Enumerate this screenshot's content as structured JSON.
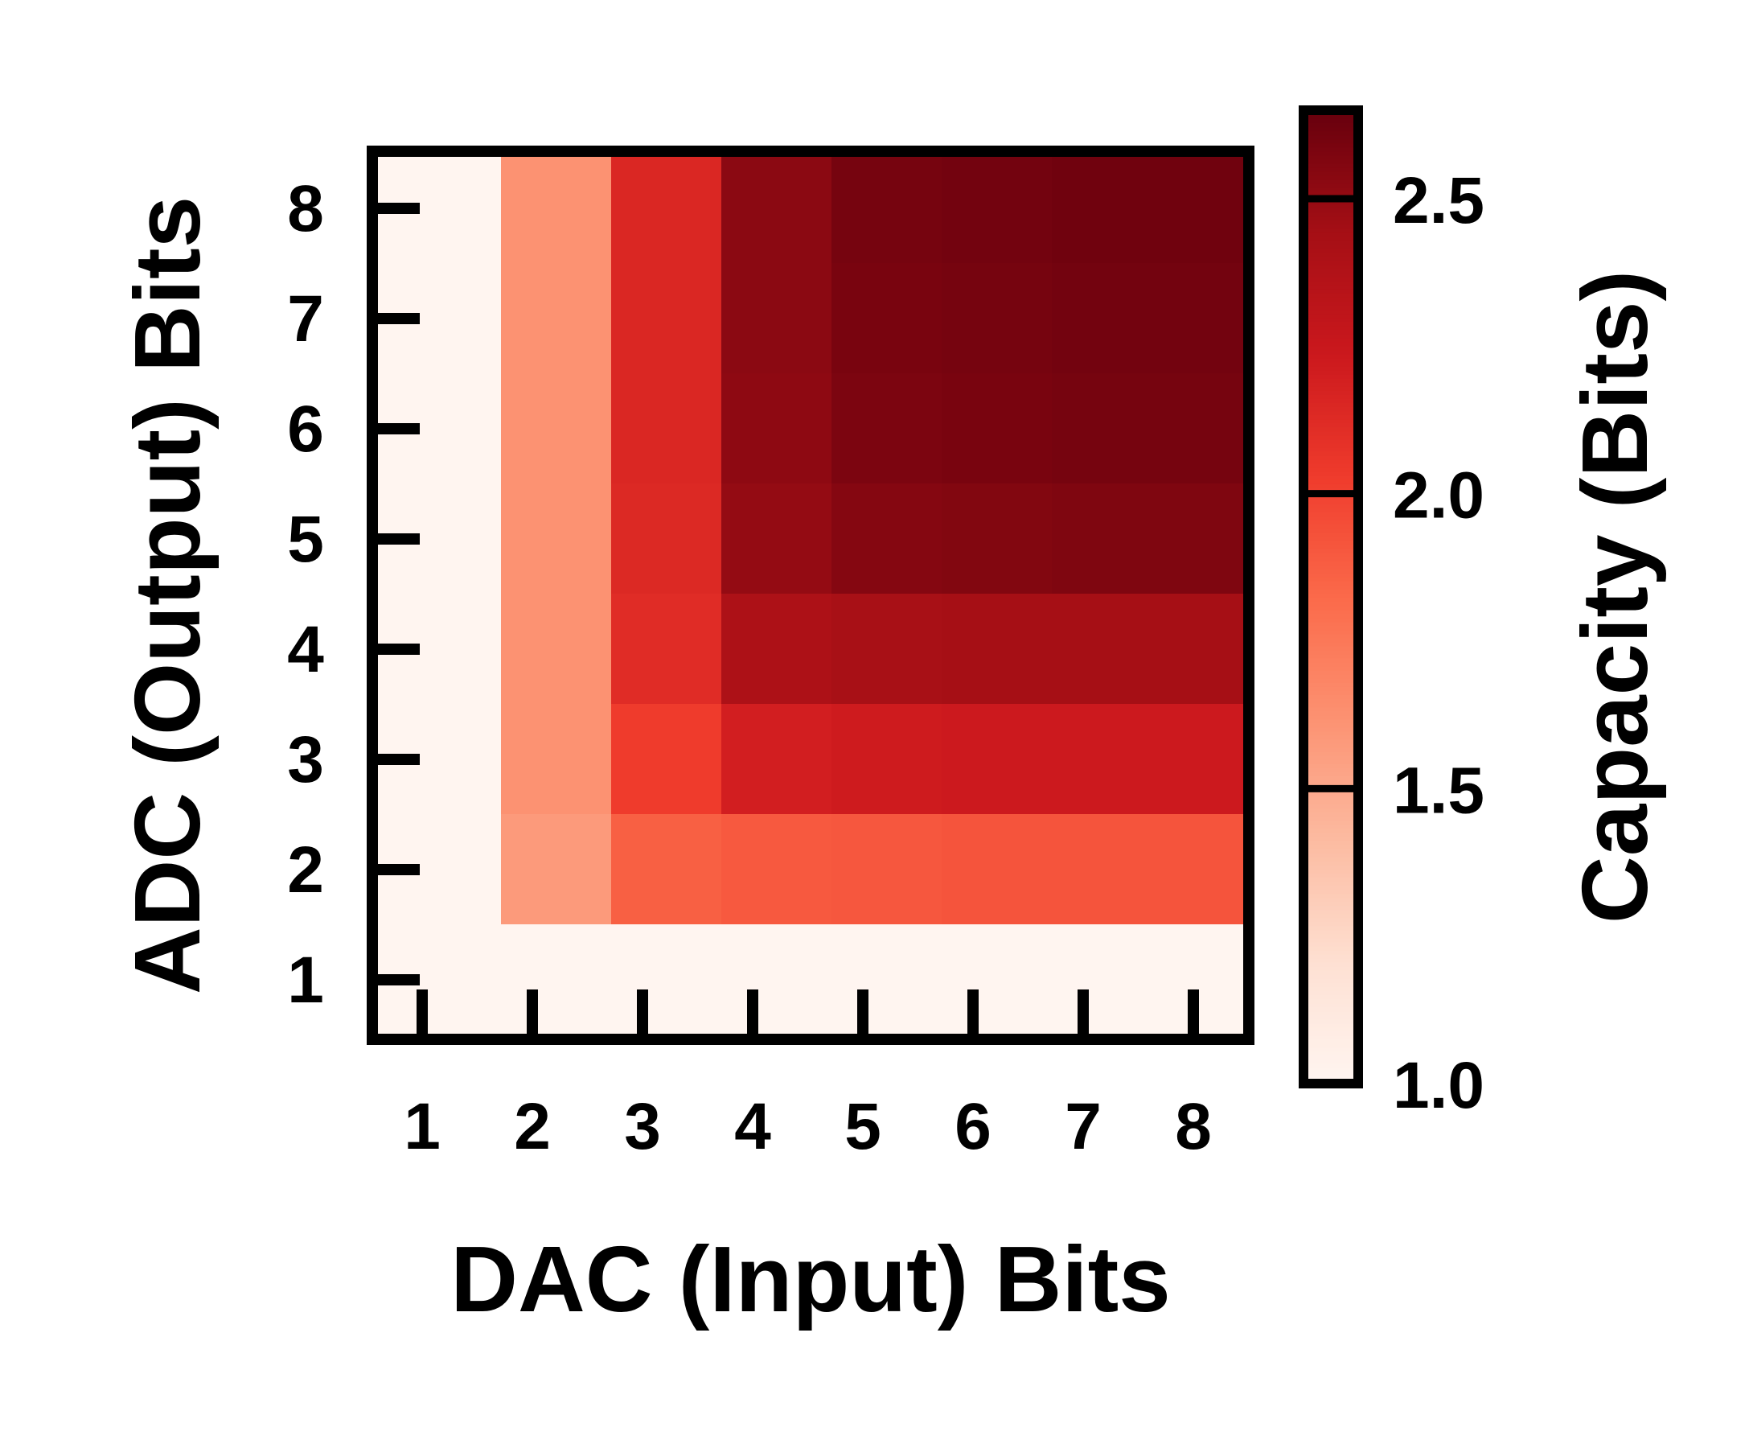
{
  "chart_data": {
    "type": "heatmap",
    "title": "",
    "xlabel": "DAC (Input) Bits",
    "ylabel": "ADC (Output) Bits",
    "x": [
      1,
      2,
      3,
      4,
      5,
      6,
      7,
      8
    ],
    "y": [
      1,
      2,
      3,
      4,
      5,
      6,
      7,
      8
    ],
    "values": [
      [
        1.0,
        1.0,
        1.0,
        1.0,
        1.0,
        1.0,
        1.0,
        1.0
      ],
      [
        1.0,
        1.58,
        1.87,
        1.9,
        1.91,
        1.92,
        1.92,
        1.92
      ],
      [
        1.0,
        1.62,
        2.03,
        2.2,
        2.22,
        2.23,
        2.23,
        2.23
      ],
      [
        1.0,
        1.62,
        2.12,
        2.4,
        2.43,
        2.44,
        2.44,
        2.44
      ],
      [
        1.0,
        1.62,
        2.14,
        2.5,
        2.55,
        2.56,
        2.57,
        2.57
      ],
      [
        1.0,
        1.62,
        2.15,
        2.52,
        2.58,
        2.59,
        2.6,
        2.6
      ],
      [
        1.0,
        1.62,
        2.15,
        2.53,
        2.59,
        2.6,
        2.61,
        2.61
      ],
      [
        1.0,
        1.62,
        2.15,
        2.53,
        2.6,
        2.61,
        2.62,
        2.62
      ]
    ],
    "colorbar": {
      "label": "Capacity (Bits)",
      "range": [
        1.0,
        2.65
      ],
      "ticks": [
        1.0,
        1.5,
        2.0,
        2.5
      ],
      "tick_labels": [
        "1.0",
        "1.5",
        "2.0",
        "2.5"
      ],
      "colormap": "Reds",
      "colors": [
        "#fff5f0",
        "#fee0d2",
        "#fcbba1",
        "#fc9272",
        "#fb6a4a",
        "#ef3b2c",
        "#cb181d",
        "#a50f15",
        "#67000d"
      ]
    },
    "grid": false,
    "legend": "none"
  }
}
